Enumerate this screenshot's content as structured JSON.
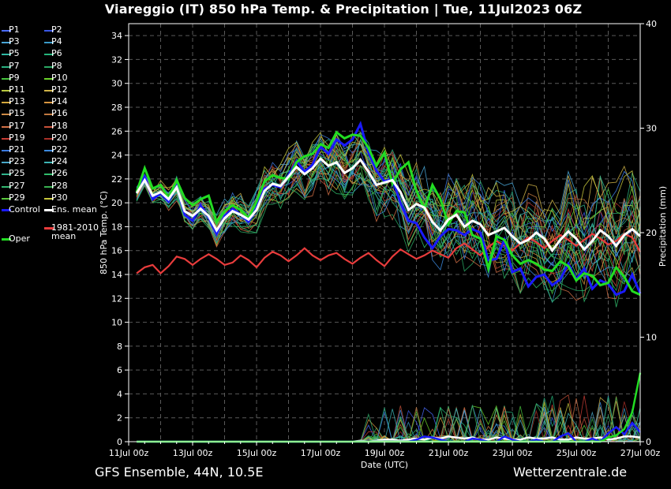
{
  "title": "Viareggio  (IT)  850 hPa Temp. & Precipitation | Tue, 11Jul2023 06Z",
  "footer": {
    "left": "GFS Ensemble, 44N, 10.5E",
    "right": "Wetterzentrale.de"
  },
  "colors": {
    "background": "#000000",
    "control": "#1a1aff",
    "ens_mean": "#ffffff",
    "climate_mean": "#e83c3c",
    "oper": "#22dd22"
  },
  "legend": [
    {
      "label": "P1",
      "color": "#4a6cff"
    },
    {
      "label": "P2",
      "color": "#3a58e6"
    },
    {
      "label": "P3",
      "color": "#49a6d6"
    },
    {
      "label": "P4",
      "color": "#3a9ac8"
    },
    {
      "label": "P5",
      "color": "#2fb9a5"
    },
    {
      "label": "P6",
      "color": "#25b47c"
    },
    {
      "label": "P7",
      "color": "#2ab080"
    },
    {
      "label": "P8",
      "color": "#2aa864"
    },
    {
      "label": "P9",
      "color": "#45c23c"
    },
    {
      "label": "P10",
      "color": "#6ad22a"
    },
    {
      "label": "P11",
      "color": "#b8c840"
    },
    {
      "label": "P12",
      "color": "#d0b448"
    },
    {
      "label": "P13",
      "color": "#d4a83c"
    },
    {
      "label": "P14",
      "color": "#d89640"
    },
    {
      "label": "P15",
      "color": "#cf8a46"
    },
    {
      "label": "P16",
      "color": "#c07840"
    },
    {
      "label": "P17",
      "color": "#d27046"
    },
    {
      "label": "P18",
      "color": "#c65038"
    },
    {
      "label": "P19",
      "color": "#c83c34"
    },
    {
      "label": "P20",
      "color": "#a83028"
    },
    {
      "label": "P21",
      "color": "#3c7ae0"
    },
    {
      "label": "P22",
      "color": "#3c8ae0"
    },
    {
      "label": "P23",
      "color": "#48a8c8"
    },
    {
      "label": "P24",
      "color": "#3cb4b4"
    },
    {
      "label": "P25",
      "color": "#30b48c"
    },
    {
      "label": "P26",
      "color": "#30bc6c"
    },
    {
      "label": "P27",
      "color": "#34b870"
    },
    {
      "label": "P28",
      "color": "#38b050"
    },
    {
      "label": "P29",
      "color": "#58c83c"
    },
    {
      "label": "P30",
      "color": "#c8c83c"
    },
    {
      "label": "Control",
      "color": "#1a1aff"
    },
    {
      "label": "Ens. mean",
      "color": "#ffffff"
    },
    {
      "label": "1981-2010 mean",
      "color": "#e83c3c"
    },
    {
      "label": "Oper",
      "color": "#22dd22"
    }
  ],
  "chart_data": {
    "type": "line",
    "title": "Viareggio  (IT)  850 hPa Temp. & Precipitation | Tue, 11Jul2023 06Z",
    "xlabel": "Date (UTC)",
    "ylabel": "850 hPa Temp. (°C)",
    "y2label": "Precipitation (mm)",
    "xlim": [
      0,
      384
    ],
    "ylim": [
      0,
      35
    ],
    "y2lim": [
      0,
      40
    ],
    "grid": true,
    "x_ticks": [
      {
        "x": 0,
        "label": "11Jul 00z"
      },
      {
        "x": 48,
        "label": "13Jul 00z"
      },
      {
        "x": 96,
        "label": "15Jul 00z"
      },
      {
        "x": 144,
        "label": "17Jul 00z"
      },
      {
        "x": 192,
        "label": "19Jul 00z"
      },
      {
        "x": 240,
        "label": "21Jul 00z"
      },
      {
        "x": 288,
        "label": "23Jul 00z"
      },
      {
        "x": 336,
        "label": "25Jul 00z"
      },
      {
        "x": 384,
        "label": "27Jul 00z"
      }
    ],
    "y_ticks": [
      0,
      2,
      4,
      6,
      8,
      10,
      12,
      14,
      16,
      18,
      20,
      22,
      24,
      26,
      28,
      30,
      32,
      34
    ],
    "y2_ticks": [
      0,
      10,
      20,
      30,
      40
    ],
    "x_hours": [
      6,
      12,
      18,
      24,
      30,
      36,
      42,
      48,
      54,
      60,
      66,
      72,
      78,
      84,
      90,
      96,
      102,
      108,
      114,
      120,
      126,
      132,
      138,
      144,
      150,
      156,
      162,
      168,
      174,
      180,
      186,
      192,
      198,
      204,
      210,
      216,
      222,
      228,
      234,
      240,
      246,
      252,
      258,
      264,
      270,
      276,
      282,
      288,
      294,
      300,
      306,
      312,
      318,
      324,
      330,
      336,
      342,
      348,
      354,
      360,
      366,
      372,
      378,
      384
    ],
    "series": [
      {
        "name": "Control",
        "values": [
          20.9,
          22.2,
          20.3,
          20.8,
          20.1,
          21.4,
          19.0,
          18.5,
          19.8,
          18.8,
          17.4,
          18.9,
          19.5,
          19.0,
          18.4,
          19.6,
          21.2,
          21.5,
          21.3,
          22.3,
          23.5,
          22.6,
          23.2,
          24.7,
          24.1,
          25.3,
          24.8,
          25.3,
          26.6,
          24.2,
          22.7,
          21.8,
          22.0,
          20.0,
          18.5,
          18.3,
          17.1,
          16.2,
          17.2,
          17.8,
          17.7,
          17.3,
          17.8,
          17.5,
          15.2,
          15.3,
          16.9,
          14.2,
          14.5,
          13.0,
          13.8,
          14.0,
          13.1,
          13.6,
          14.9,
          13.6,
          14.5,
          12.8,
          13.5,
          13.2,
          12.3,
          12.6,
          14.0,
          12.4
        ]
      },
      {
        "name": "Ens. mean",
        "values": [
          20.8,
          21.9,
          20.6,
          20.9,
          20.3,
          21.3,
          19.3,
          18.9,
          19.5,
          18.9,
          17.7,
          18.7,
          19.3,
          19.0,
          18.6,
          19.4,
          21.0,
          21.6,
          21.4,
          22.2,
          23.0,
          22.4,
          22.9,
          23.7,
          23.1,
          23.4,
          22.5,
          22.9,
          23.6,
          22.6,
          21.5,
          21.7,
          21.9,
          20.9,
          19.4,
          19.9,
          19.6,
          18.4,
          17.7,
          18.6,
          19.0,
          18.0,
          18.5,
          18.2,
          17.3,
          17.6,
          17.9,
          17.2,
          16.6,
          16.9,
          17.5,
          17.0,
          16.0,
          16.9,
          17.6,
          17.0,
          16.1,
          16.8,
          17.7,
          17.2,
          16.4,
          17.3,
          17.8,
          17.2
        ]
      },
      {
        "name": "1981-2010 mean",
        "values": [
          14.1,
          14.6,
          14.8,
          14.1,
          14.7,
          15.5,
          15.3,
          14.8,
          15.3,
          15.7,
          15.3,
          14.8,
          15.0,
          15.6,
          15.2,
          14.6,
          15.4,
          15.9,
          15.6,
          15.1,
          15.6,
          16.2,
          15.6,
          15.2,
          15.6,
          15.8,
          15.3,
          14.9,
          15.4,
          15.8,
          15.2,
          14.7,
          15.5,
          16.1,
          15.7,
          15.3,
          15.6,
          16.0,
          15.7,
          15.4,
          16.2,
          16.6,
          16.1,
          15.6,
          16.3,
          16.8,
          16.4,
          16.0,
          16.6,
          17.1,
          16.7,
          16.2,
          16.8,
          17.3,
          16.9,
          16.4,
          16.9,
          17.4,
          17.0,
          16.5,
          16.8,
          17.4,
          17.1,
          15.9
        ]
      },
      {
        "name": "Oper",
        "values": [
          20.9,
          22.9,
          21.2,
          21.5,
          20.4,
          21.9,
          20.4,
          19.8,
          20.3,
          20.6,
          18.4,
          19.3,
          19.8,
          19.4,
          18.7,
          20.1,
          21.8,
          22.3,
          22.1,
          22.0,
          23.4,
          23.9,
          24.1,
          24.9,
          24.6,
          25.9,
          25.4,
          25.7,
          25.6,
          24.6,
          23.1,
          24.2,
          21.6,
          22.8,
          23.4,
          21.0,
          19.5,
          21.5,
          20.3,
          18.2,
          19.3,
          19.2,
          17.3,
          17.0,
          14.5,
          17.2,
          16.9,
          15.6,
          14.9,
          15.2,
          14.9,
          14.4,
          14.3,
          15.1,
          14.7,
          13.5,
          14.1,
          13.9,
          13.1,
          13.3,
          14.6,
          13.8,
          12.6,
          12.3
        ]
      },
      {
        "name": "Oper precipitation",
        "axis": "y2",
        "values": [
          0,
          0,
          0,
          0,
          0,
          0,
          0,
          0,
          0,
          0,
          0,
          0,
          0,
          0,
          0,
          0,
          0,
          0,
          0,
          0,
          0,
          0,
          0,
          0,
          0,
          0,
          0,
          0,
          0,
          0,
          0,
          0,
          0,
          0,
          0,
          0,
          0,
          0,
          0,
          0,
          0,
          0,
          0,
          0,
          0,
          0,
          0,
          0,
          0,
          0,
          0,
          0,
          0,
          0,
          0,
          0,
          0,
          0,
          0,
          0.4,
          0.6,
          1.2,
          2.8,
          6.6
        ]
      },
      {
        "name": "Control precipitation",
        "axis": "y2",
        "values": [
          0,
          0,
          0,
          0,
          0,
          0,
          0,
          0,
          0,
          0,
          0,
          0,
          0,
          0,
          0,
          0,
          0,
          0,
          0,
          0,
          0,
          0,
          0,
          0,
          0,
          0,
          0,
          0,
          0,
          0,
          0,
          0,
          0,
          0,
          0,
          0.2,
          0.5,
          0.4,
          0.2,
          0,
          0,
          0,
          0.3,
          0.2,
          0,
          0,
          0.5,
          0.2,
          0,
          0,
          0.2,
          0,
          0,
          0.5,
          0.8,
          0,
          0,
          0.3,
          0,
          0.8,
          1.4,
          0.7,
          1.8,
          0.9
        ]
      },
      {
        "name": "Ens. mean precipitation",
        "axis": "y2",
        "values": [
          0,
          0,
          0,
          0,
          0,
          0,
          0,
          0,
          0,
          0,
          0,
          0,
          0,
          0,
          0,
          0,
          0,
          0,
          0,
          0,
          0,
          0,
          0,
          0,
          0,
          0,
          0,
          0,
          0.1,
          0,
          0.1,
          0.2,
          0.2,
          0.1,
          0.2,
          0.3,
          0.2,
          0.4,
          0.3,
          0.5,
          0.4,
          0.3,
          0.4,
          0.2,
          0.2,
          0.4,
          0.3,
          0.2,
          0.2,
          0.4,
          0.3,
          0.3,
          0.4,
          0.2,
          0.2,
          0.4,
          0.3,
          0.3,
          0.4,
          0.2,
          0.3,
          0.5,
          0.5,
          0.4
        ]
      }
    ]
  }
}
